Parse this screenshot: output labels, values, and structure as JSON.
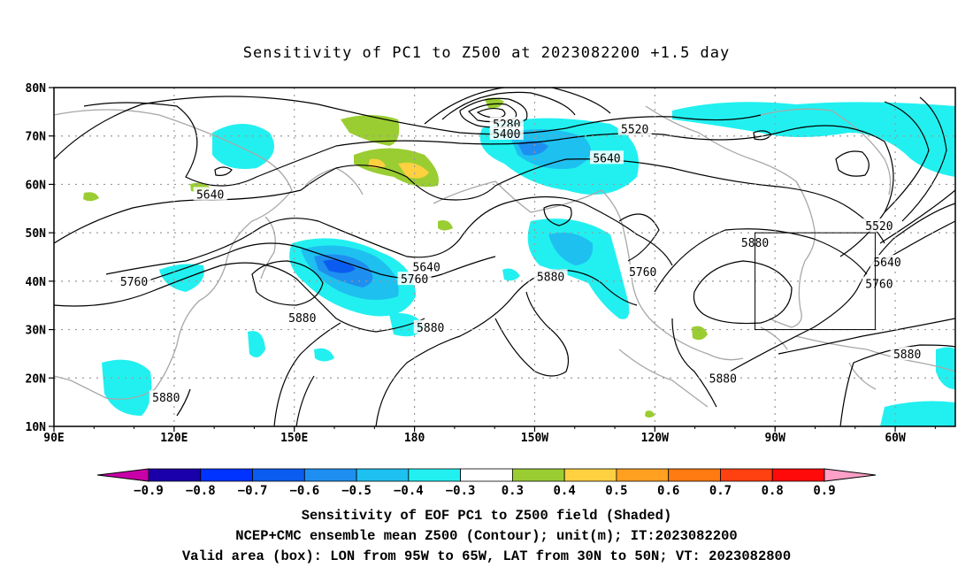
{
  "title": "Sensitivity of PC1 to Z500 at 2023082200 +1.5 day",
  "map": {
    "lat_ticks": [
      "80N",
      "70N",
      "60N",
      "50N",
      "40N",
      "30N",
      "20N",
      "10N"
    ],
    "lon_ticks": [
      "90E",
      "120E",
      "150E",
      "180",
      "150W",
      "120W",
      "90W",
      "60W"
    ],
    "lon_range_deg_east": [
      90,
      315
    ],
    "lat_range_deg": [
      10,
      80
    ],
    "gridlines": "dotted",
    "valid_box": {
      "lon_west": 265,
      "lon_east": 295,
      "lat_south": 30,
      "lat_north": 50
    }
  },
  "contour_labels": [
    {
      "text": "5280",
      "lon": 203,
      "lat": 72.5
    },
    {
      "text": "5400",
      "lon": 203,
      "lat": 70.5
    },
    {
      "text": "5520",
      "lon": 235,
      "lat": 71.5
    },
    {
      "text": "5640",
      "lon": 228,
      "lat": 65.5
    },
    {
      "text": "5640",
      "lon": 129,
      "lat": 58
    },
    {
      "text": "5640",
      "lon": 183,
      "lat": 43
    },
    {
      "text": "5760",
      "lon": 110,
      "lat": 40
    },
    {
      "text": "5760",
      "lon": 180,
      "lat": 40.5
    },
    {
      "text": "5760",
      "lon": 237,
      "lat": 42
    },
    {
      "text": "5880",
      "lon": 152,
      "lat": 32.5
    },
    {
      "text": "5880",
      "lon": 184,
      "lat": 30.5
    },
    {
      "text": "5880",
      "lon": 214,
      "lat": 41
    },
    {
      "text": "5880",
      "lon": 265,
      "lat": 48
    },
    {
      "text": "5880",
      "lon": 257,
      "lat": 20
    },
    {
      "text": "5880",
      "lon": 118,
      "lat": 16
    },
    {
      "text": "5880",
      "lon": 303,
      "lat": 25
    },
    {
      "text": "5520",
      "lon": 296,
      "lat": 51.5
    },
    {
      "text": "5640",
      "lon": 298,
      "lat": 44
    },
    {
      "text": "5760",
      "lon": 296,
      "lat": 39.5
    }
  ],
  "colorbar": {
    "labels": [
      "−0.9",
      "−0.8",
      "−0.7",
      "−0.6",
      "−0.5",
      "−0.4",
      "−0.3",
      "0.3",
      "0.4",
      "0.5",
      "0.6",
      "0.7",
      "0.8",
      "0.9"
    ],
    "colors": [
      "#1a00a8",
      "#0033ff",
      "#0a5cf0",
      "#1e8ff0",
      "#1ec0f0",
      "#22f0f0",
      "#ffffff",
      "#9acd32",
      "#ffd040",
      "#ffa020",
      "#ff7a10",
      "#ff4010",
      "#ff0a0a"
    ],
    "low_extend_color": "#c800a8",
    "high_extend_color": "#ffa0c8"
  },
  "captions": [
    "Sensitivity of EOF PC1 to Z500 field (Shaded)",
    "NCEP+CMC ensemble mean Z500 (Contour); unit(m); IT:2023082200",
    "Valid area (box): LON from 95W to 65W, LAT from 30N to 50N; VT: 2023082800"
  ]
}
